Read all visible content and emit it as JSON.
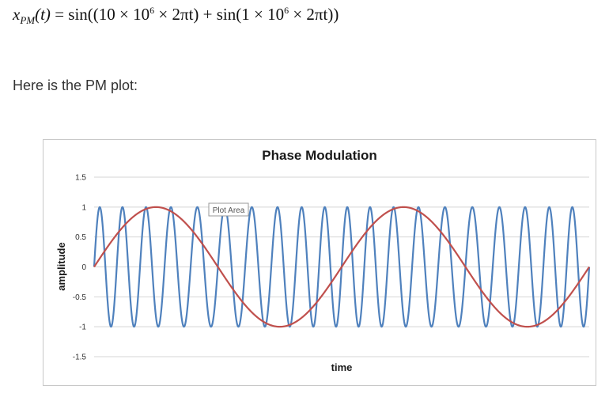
{
  "formula": {
    "lhs_symbol": "x",
    "lhs_subscript": "PM",
    "lhs_arg": "(t)",
    "equals": " = ",
    "part1": "sin((10 × 10",
    "exp1": "6",
    "part2": " × 2πt) + sin(1 × 10",
    "exp2": "6",
    "part3": " × 2πt))"
  },
  "caption": "Here is the PM plot:",
  "chart_data": {
    "type": "line",
    "title": "Phase Modulation",
    "xlabel": "time",
    "ylabel": "amplitude",
    "ylim": [
      -1.5,
      1.5
    ],
    "yticks": [
      1.5,
      1,
      0.5,
      0,
      -0.5,
      -1,
      -1.5
    ],
    "ytick_labels": [
      "1.5",
      "1",
      "0.5",
      "0",
      "-0.5",
      "-1",
      "-1.5"
    ],
    "grid": true,
    "hover_tag": "Plot Area",
    "series": [
      {
        "color": "#4f81bd",
        "formula": "sin(2π·10e6·t + sin(2π·1e6·t))",
        "carrier_freq_hz": 10000000,
        "message_freq_hz": 1000000
      },
      {
        "color": "#c0504d",
        "formula": "sin(2π·1e6·t)",
        "freq_hz": 1000000
      }
    ],
    "time_span_periods_of_message": 2
  }
}
